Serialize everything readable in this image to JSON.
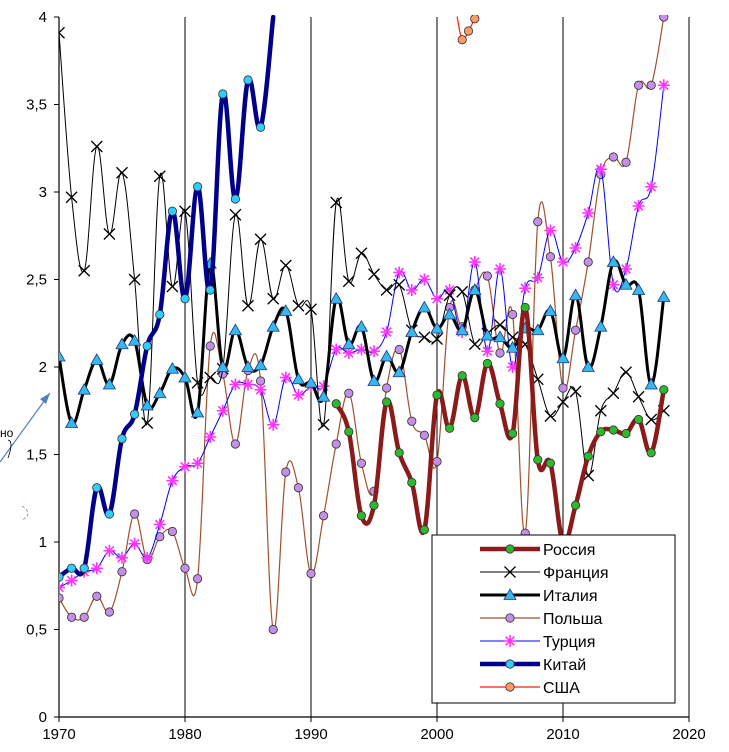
{
  "chart_data": {
    "type": "line",
    "title": "",
    "xlabel": "",
    "ylabel": "",
    "xlim": [
      1970,
      2020
    ],
    "ylim": [
      0,
      4
    ],
    "x_ticks": [
      1970,
      1980,
      1990,
      2000,
      2010,
      2020
    ],
    "y_ticks": [
      0,
      0.5,
      1,
      1.5,
      2,
      2.5,
      3,
      3.5,
      4
    ],
    "x_tick_labels": [
      "1970",
      "1980",
      "1990",
      "2000",
      "2010",
      "2020"
    ],
    "y_tick_labels": [
      "0",
      "0,5",
      "1",
      "1,5",
      "2",
      "2,5",
      "3",
      "3,5",
      "4"
    ],
    "grid": "vertical",
    "legend_position": "bottom-right",
    "fragment_text": "но",
    "series": [
      {
        "name": "Россия",
        "color": "#8b1a1a",
        "marker": "circle",
        "marker_fill": "#2db82d",
        "width": 4.5,
        "points": [
          [
            1992,
            1.79
          ],
          [
            1993,
            1.63
          ],
          [
            1994,
            1.15
          ],
          [
            1995,
            1.21
          ],
          [
            1996,
            1.8
          ],
          [
            1997,
            1.51
          ],
          [
            1998,
            1.34
          ],
          [
            1999,
            1.07
          ],
          [
            2000,
            1.84
          ],
          [
            2001,
            1.65
          ],
          [
            2002,
            1.95
          ],
          [
            2003,
            1.71
          ],
          [
            2004,
            2.02
          ],
          [
            2005,
            1.79
          ],
          [
            2006,
            1.62
          ],
          [
            2007,
            2.34
          ],
          [
            2008,
            1.47
          ],
          [
            2009,
            1.45
          ],
          [
            2010,
            1.0
          ],
          [
            2011,
            1.21
          ],
          [
            2012,
            1.49
          ],
          [
            2013,
            1.63
          ],
          [
            2014,
            1.64
          ],
          [
            2015,
            1.62
          ],
          [
            2016,
            1.7
          ],
          [
            2017,
            1.51
          ],
          [
            2018,
            1.87
          ]
        ]
      },
      {
        "name": "Франция",
        "color": "#000000",
        "marker": "x",
        "marker_fill": "#000000",
        "width": 1,
        "points": [
          [
            1970,
            3.91
          ],
          [
            1971,
            2.97
          ],
          [
            1972,
            2.55
          ],
          [
            1973,
            3.26
          ],
          [
            1974,
            2.76
          ],
          [
            1975,
            3.11
          ],
          [
            1976,
            2.5
          ],
          [
            1977,
            1.68
          ],
          [
            1978,
            3.09
          ],
          [
            1979,
            2.46
          ],
          [
            1980,
            2.89
          ],
          [
            1981,
            1.91
          ],
          [
            1982,
            1.94
          ],
          [
            1983,
            1.99
          ],
          [
            1984,
            2.87
          ],
          [
            1985,
            2.35
          ],
          [
            1986,
            2.73
          ],
          [
            1987,
            2.39
          ],
          [
            1988,
            2.58
          ],
          [
            1989,
            2.35
          ],
          [
            1990,
            2.33
          ],
          [
            1991,
            1.67
          ],
          [
            1992,
            2.94
          ],
          [
            1993,
            2.49
          ],
          [
            1994,
            2.65
          ],
          [
            1995,
            2.53
          ],
          [
            1996,
            2.44
          ],
          [
            1997,
            2.47
          ],
          [
            1998,
            2.21
          ],
          [
            1999,
            2.17
          ],
          [
            2000,
            2.16
          ],
          [
            2001,
            2.41
          ],
          [
            2002,
            2.43
          ],
          [
            2003,
            2.13
          ],
          [
            2004,
            2.19
          ],
          [
            2005,
            2.24
          ],
          [
            2006,
            2.17
          ],
          [
            2007,
            2.13
          ],
          [
            2008,
            1.93
          ],
          [
            2009,
            1.72
          ],
          [
            2010,
            1.8
          ],
          [
            2011,
            1.86
          ],
          [
            2012,
            1.38
          ],
          [
            2013,
            1.75
          ],
          [
            2014,
            1.85
          ],
          [
            2015,
            1.97
          ],
          [
            2016,
            1.83
          ],
          [
            2017,
            1.7
          ],
          [
            2018,
            1.75
          ]
        ]
      },
      {
        "name": "Италия",
        "color": "#000000",
        "marker": "triangle",
        "marker_fill": "#38b8e8",
        "width": 3,
        "points": [
          [
            1970,
            2.06
          ],
          [
            1971,
            1.68
          ],
          [
            1972,
            1.87
          ],
          [
            1973,
            2.04
          ],
          [
            1974,
            1.9
          ],
          [
            1975,
            2.13
          ],
          [
            1976,
            2.15
          ],
          [
            1977,
            1.78
          ],
          [
            1978,
            1.85
          ],
          [
            1979,
            1.99
          ],
          [
            1980,
            1.94
          ],
          [
            1981,
            1.74
          ],
          [
            1982,
            2.59
          ],
          [
            1983,
            2.0
          ],
          [
            1984,
            2.21
          ],
          [
            1985,
            2.0
          ],
          [
            1986,
            2.01
          ],
          [
            1987,
            2.23
          ],
          [
            1988,
            2.32
          ],
          [
            1989,
            1.93
          ],
          [
            1990,
            1.91
          ],
          [
            1991,
            1.83
          ],
          [
            1992,
            2.39
          ],
          [
            1993,
            2.13
          ],
          [
            1994,
            2.23
          ],
          [
            1995,
            1.92
          ],
          [
            1996,
            2.06
          ],
          [
            1997,
            1.97
          ],
          [
            1998,
            2.2
          ],
          [
            1999,
            2.34
          ],
          [
            2000,
            2.22
          ],
          [
            2001,
            2.3
          ],
          [
            2002,
            2.21
          ],
          [
            2003,
            2.44
          ],
          [
            2004,
            2.18
          ],
          [
            2005,
            2.17
          ],
          [
            2006,
            2.11
          ],
          [
            2007,
            2.22
          ],
          [
            2008,
            2.21
          ],
          [
            2009,
            2.32
          ],
          [
            2010,
            2.05
          ],
          [
            2011,
            2.41
          ],
          [
            2012,
            2.0
          ],
          [
            2013,
            2.23
          ],
          [
            2014,
            2.6
          ],
          [
            2015,
            2.47
          ],
          [
            2016,
            2.44
          ],
          [
            2017,
            1.9
          ],
          [
            2018,
            2.4
          ]
        ]
      },
      {
        "name": "Польша",
        "color": "#a0522d",
        "marker": "circle",
        "marker_fill": "#c58ee8",
        "width": 1.2,
        "points": [
          [
            1970,
            0.68
          ],
          [
            1971,
            0.57
          ],
          [
            1972,
            0.57
          ],
          [
            1973,
            0.69
          ],
          [
            1974,
            0.6
          ],
          [
            1975,
            0.83
          ],
          [
            1976,
            1.16
          ],
          [
            1977,
            0.9
          ],
          [
            1978,
            1.03
          ],
          [
            1979,
            1.06
          ],
          [
            1980,
            0.85
          ],
          [
            1981,
            0.79
          ],
          [
            1982,
            2.12
          ],
          [
            1983,
            1.96
          ],
          [
            1984,
            1.56
          ],
          [
            1985,
            1.98
          ],
          [
            1986,
            1.92
          ],
          [
            1987,
            0.5
          ],
          [
            1988,
            1.4
          ],
          [
            1989,
            1.31
          ],
          [
            1990,
            0.82
          ],
          [
            1991,
            1.15
          ],
          [
            1992,
            1.56
          ],
          [
            1993,
            1.85
          ],
          [
            1994,
            1.45
          ],
          [
            1995,
            1.29
          ],
          [
            1996,
            1.88
          ],
          [
            1997,
            2.1
          ],
          [
            1998,
            1.69
          ],
          [
            1999,
            1.61
          ],
          [
            2000,
            1.46
          ],
          [
            2001,
            2.34
          ],
          [
            2002,
            2.23
          ],
          [
            2003,
            2.44
          ],
          [
            2004,
            2.52
          ],
          [
            2005,
            2.08
          ],
          [
            2006,
            2.3
          ],
          [
            2007,
            1.05
          ],
          [
            2008,
            2.83
          ],
          [
            2009,
            2.63
          ],
          [
            2010,
            1.88
          ],
          [
            2011,
            2.21
          ],
          [
            2012,
            2.6
          ],
          [
            2013,
            3.1
          ],
          [
            2014,
            3.2
          ],
          [
            2015,
            3.17
          ],
          [
            2016,
            3.61
          ],
          [
            2017,
            3.61
          ],
          [
            2018,
            4.0
          ]
        ]
      },
      {
        "name": "Турция",
        "color": "#0000ff",
        "marker": "star",
        "marker_fill": "#ff33ff",
        "width": 1,
        "points": [
          [
            1970,
            0.74
          ],
          [
            1971,
            0.78
          ],
          [
            1972,
            0.83
          ],
          [
            1973,
            0.85
          ],
          [
            1974,
            0.95
          ],
          [
            1975,
            0.91
          ],
          [
            1976,
            0.99
          ],
          [
            1977,
            0.91
          ],
          [
            1978,
            1.1
          ],
          [
            1979,
            1.35
          ],
          [
            1980,
            1.43
          ],
          [
            1981,
            1.45
          ],
          [
            1982,
            1.6
          ],
          [
            1983,
            1.75
          ],
          [
            1984,
            1.9
          ],
          [
            1985,
            1.9
          ],
          [
            1986,
            1.87
          ],
          [
            1987,
            1.67
          ],
          [
            1988,
            1.94
          ],
          [
            1989,
            1.84
          ],
          [
            1990,
            1.89
          ],
          [
            1991,
            1.89
          ],
          [
            1992,
            2.1
          ],
          [
            1993,
            2.08
          ],
          [
            1994,
            2.1
          ],
          [
            1995,
            2.09
          ],
          [
            1996,
            2.2
          ],
          [
            1997,
            2.54
          ],
          [
            1998,
            2.44
          ],
          [
            1999,
            2.5
          ],
          [
            2000,
            2.39
          ],
          [
            2001,
            2.44
          ],
          [
            2002,
            2.2
          ],
          [
            2003,
            2.6
          ],
          [
            2004,
            2.09
          ],
          [
            2005,
            2.56
          ],
          [
            2006,
            2.0
          ],
          [
            2007,
            2.45
          ],
          [
            2008,
            2.51
          ],
          [
            2009,
            2.78
          ],
          [
            2010,
            2.6
          ],
          [
            2011,
            2.68
          ],
          [
            2012,
            2.88
          ],
          [
            2013,
            3.13
          ],
          [
            2014,
            2.47
          ],
          [
            2015,
            2.56
          ],
          [
            2016,
            2.92
          ],
          [
            2017,
            3.03
          ],
          [
            2018,
            3.61
          ]
        ]
      },
      {
        "name": "Китай",
        "color": "#00008b",
        "marker": "circle",
        "marker_fill": "#33ccff",
        "width": 4.5,
        "points": [
          [
            1970,
            0.8
          ],
          [
            1971,
            0.85
          ],
          [
            1972,
            0.85
          ],
          [
            1973,
            1.31
          ],
          [
            1974,
            1.16
          ],
          [
            1975,
            1.59
          ],
          [
            1976,
            1.73
          ],
          [
            1977,
            2.12
          ],
          [
            1978,
            2.3
          ],
          [
            1979,
            2.89
          ],
          [
            1980,
            2.39
          ],
          [
            1981,
            3.03
          ],
          [
            1982,
            2.44
          ],
          [
            1983,
            3.56
          ],
          [
            1984,
            2.96
          ],
          [
            1985,
            3.64
          ],
          [
            1986,
            3.37
          ],
          [
            1987,
            4.0
          ]
        ]
      },
      {
        "name": "США",
        "color": "#ff2200",
        "marker": "circle",
        "marker_fill": "#ff9966",
        "width": 1.2,
        "points": [
          [
            2001.6,
            4.0
          ],
          [
            2002,
            3.87
          ],
          [
            2002.5,
            3.92
          ],
          [
            2003,
            3.99
          ],
          [
            2003.2,
            4.0
          ]
        ]
      }
    ]
  }
}
